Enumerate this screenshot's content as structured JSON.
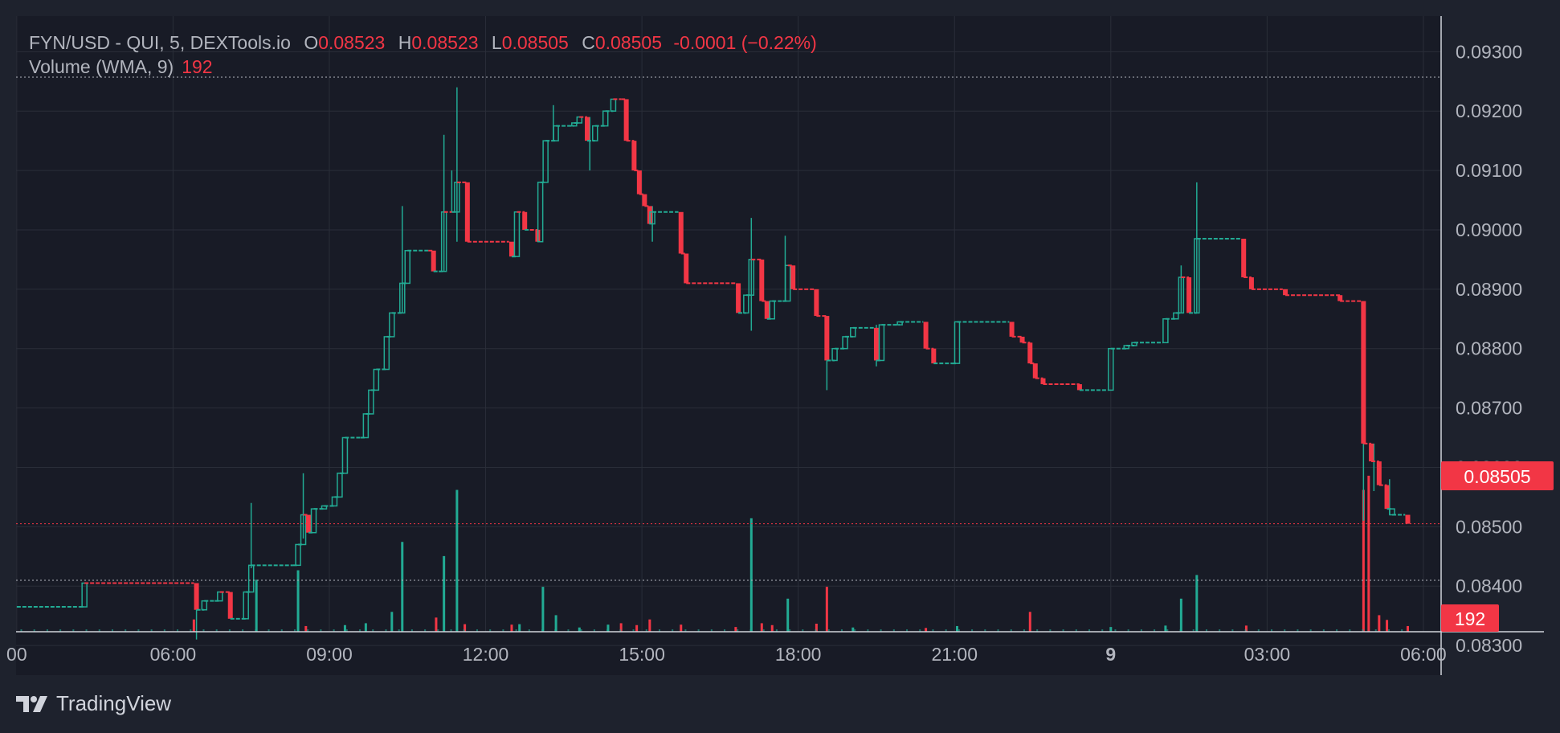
{
  "colors": {
    "background": "#1e222d",
    "plot_background": "#181b26",
    "grid": "#2a2e39",
    "up": "#22ab94",
    "down": "#f23645",
    "axis_text": "#b2b5be",
    "price_label_bg": "#f23645"
  },
  "legend": {
    "symbol": "FYN/USD - QUI, 5, DEXTools.io",
    "o_label": "O",
    "o_value": "0.08523",
    "h_label": "H",
    "h_value": "0.08523",
    "l_label": "L",
    "l_value": "0.08505",
    "c_label": "C",
    "c_value": "0.08505",
    "change": "-0.0001 (−0.22%)",
    "volume_label": "Volume (WMA, 9)",
    "volume_value": "192"
  },
  "current_price_label": "0.08505",
  "current_volume_label": "192",
  "brand": {
    "name": "TradingView",
    "icon": "tradingview-logo-icon"
  },
  "chart_data": {
    "type": "candlestick",
    "x_ticks": [
      "00",
      "06:00",
      "09:00",
      "12:00",
      "15:00",
      "18:00",
      "21:00",
      "9",
      "03:00",
      "06:00"
    ],
    "x_tick_hours": [
      3,
      6,
      9,
      12,
      15,
      18,
      21,
      24,
      27,
      30
    ],
    "x_range_hours": [
      2.987,
      30.34
    ],
    "y_ticks": [
      "0.09300",
      "0.09200",
      "0.09100",
      "0.09000",
      "0.08900",
      "0.08800",
      "0.08700",
      "0.08600",
      "0.08500",
      "0.08400",
      "0.08300"
    ],
    "y_range": [
      0.0825,
      0.0936
    ],
    "last_price": 0.08505,
    "volume_ylim": [
      0,
      3400
    ],
    "price_path": [
      [
        3.0,
        0.08365,
        "up"
      ],
      [
        4.2,
        0.08365,
        "up"
      ],
      [
        4.3,
        0.08405,
        "up"
      ],
      [
        6.4,
        0.08405,
        "down"
      ],
      [
        6.45,
        0.0836,
        "down"
      ],
      [
        6.6,
        0.08375,
        "up"
      ],
      [
        6.8,
        0.08375,
        "up"
      ],
      [
        6.9,
        0.0839,
        "up"
      ],
      [
        7.1,
        0.08345,
        "down"
      ],
      [
        7.4,
        0.0839,
        "up"
      ],
      [
        7.5,
        0.08435,
        "up"
      ],
      [
        8.3,
        0.08435,
        "up"
      ],
      [
        8.4,
        0.0847,
        "up"
      ],
      [
        8.5,
        0.0852,
        "up"
      ],
      [
        8.6,
        0.0849,
        "down"
      ],
      [
        8.7,
        0.0853,
        "up"
      ],
      [
        8.9,
        0.08535,
        "up"
      ],
      [
        9.1,
        0.0855,
        "up"
      ],
      [
        9.2,
        0.0859,
        "up"
      ],
      [
        9.3,
        0.0865,
        "up"
      ],
      [
        9.6,
        0.0865,
        "up"
      ],
      [
        9.7,
        0.0869,
        "up"
      ],
      [
        9.8,
        0.0873,
        "up"
      ],
      [
        9.9,
        0.08765,
        "up"
      ],
      [
        10.1,
        0.0882,
        "up"
      ],
      [
        10.2,
        0.0886,
        "up"
      ],
      [
        10.4,
        0.0891,
        "up"
      ],
      [
        10.5,
        0.08965,
        "up"
      ],
      [
        10.9,
        0.08965,
        "up"
      ],
      [
        11.0,
        0.0893,
        "down"
      ],
      [
        11.1,
        0.0893,
        "up"
      ],
      [
        11.2,
        0.0903,
        "up"
      ],
      [
        11.35,
        0.0903,
        "down"
      ],
      [
        11.45,
        0.0908,
        "up"
      ],
      [
        11.55,
        0.0908,
        "down"
      ],
      [
        11.65,
        0.0898,
        "down"
      ],
      [
        12.45,
        0.0898,
        "down"
      ],
      [
        12.5,
        0.08955,
        "down"
      ],
      [
        12.6,
        0.0903,
        "up"
      ],
      [
        12.75,
        0.09,
        "down"
      ],
      [
        12.85,
        0.09,
        "up"
      ],
      [
        13.0,
        0.0898,
        "down"
      ],
      [
        13.05,
        0.0908,
        "up"
      ],
      [
        13.15,
        0.0915,
        "up"
      ],
      [
        13.35,
        0.09175,
        "up"
      ],
      [
        13.7,
        0.0918,
        "up"
      ],
      [
        13.8,
        0.0919,
        "up"
      ],
      [
        13.95,
        0.0915,
        "down"
      ],
      [
        14.1,
        0.09175,
        "up"
      ],
      [
        14.3,
        0.092,
        "up"
      ],
      [
        14.45,
        0.0922,
        "up"
      ],
      [
        14.6,
        0.0922,
        "down"
      ],
      [
        14.7,
        0.0915,
        "down"
      ],
      [
        14.85,
        0.091,
        "down"
      ],
      [
        14.95,
        0.0906,
        "down"
      ],
      [
        15.05,
        0.0904,
        "down"
      ],
      [
        15.15,
        0.0901,
        "down"
      ],
      [
        15.2,
        0.0903,
        "up"
      ],
      [
        15.7,
        0.0903,
        "up"
      ],
      [
        15.75,
        0.0896,
        "down"
      ],
      [
        15.85,
        0.0891,
        "down"
      ],
      [
        16.8,
        0.0891,
        "down"
      ],
      [
        16.85,
        0.0886,
        "down"
      ],
      [
        17.0,
        0.0889,
        "up"
      ],
      [
        17.1,
        0.0895,
        "up"
      ],
      [
        17.3,
        0.0888,
        "down"
      ],
      [
        17.4,
        0.0885,
        "down"
      ],
      [
        17.5,
        0.0888,
        "up"
      ],
      [
        17.7,
        0.0888,
        "up"
      ],
      [
        17.8,
        0.0894,
        "up"
      ],
      [
        17.9,
        0.089,
        "down"
      ],
      [
        18.3,
        0.089,
        "down"
      ],
      [
        18.35,
        0.08855,
        "down"
      ],
      [
        18.55,
        0.0878,
        "down"
      ],
      [
        18.7,
        0.088,
        "up"
      ],
      [
        18.9,
        0.0882,
        "up"
      ],
      [
        19.05,
        0.08835,
        "up"
      ],
      [
        19.45,
        0.08835,
        "up"
      ],
      [
        19.5,
        0.0878,
        "down"
      ],
      [
        19.6,
        0.0884,
        "up"
      ],
      [
        19.95,
        0.08845,
        "up"
      ],
      [
        20.4,
        0.08845,
        "up"
      ],
      [
        20.45,
        0.088,
        "down"
      ],
      [
        20.6,
        0.08775,
        "down"
      ],
      [
        20.95,
        0.08775,
        "up"
      ],
      [
        21.05,
        0.08845,
        "up"
      ],
      [
        22.05,
        0.08845,
        "up"
      ],
      [
        22.1,
        0.0882,
        "down"
      ],
      [
        22.3,
        0.0881,
        "down"
      ],
      [
        22.45,
        0.08775,
        "down"
      ],
      [
        22.55,
        0.0875,
        "down"
      ],
      [
        22.7,
        0.0874,
        "down"
      ],
      [
        23.4,
        0.0873,
        "down"
      ],
      [
        23.95,
        0.0873,
        "up"
      ],
      [
        24.0,
        0.088,
        "up"
      ],
      [
        24.3,
        0.08805,
        "up"
      ],
      [
        24.45,
        0.0881,
        "up"
      ],
      [
        25.0,
        0.0881,
        "up"
      ],
      [
        25.05,
        0.0885,
        "up"
      ],
      [
        25.25,
        0.0886,
        "up"
      ],
      [
        25.35,
        0.0892,
        "up"
      ],
      [
        25.5,
        0.0886,
        "down"
      ],
      [
        25.65,
        0.08985,
        "up"
      ],
      [
        26.5,
        0.08985,
        "up"
      ],
      [
        26.55,
        0.0892,
        "down"
      ],
      [
        26.7,
        0.089,
        "down"
      ],
      [
        27.3,
        0.089,
        "down"
      ],
      [
        27.35,
        0.0889,
        "down"
      ],
      [
        28.4,
        0.0888,
        "down"
      ],
      [
        28.8,
        0.0888,
        "down"
      ],
      [
        28.85,
        0.0864,
        "down"
      ],
      [
        29.0,
        0.0861,
        "down"
      ],
      [
        29.15,
        0.0857,
        "down"
      ],
      [
        29.3,
        0.0853,
        "down"
      ],
      [
        29.4,
        0.0852,
        "up"
      ],
      [
        29.65,
        0.0852,
        "up"
      ],
      [
        29.7,
        0.08505,
        "down"
      ]
    ],
    "wicks": [
      [
        6.45,
        0.0836,
        0.0831
      ],
      [
        7.5,
        0.0854,
        0.0843
      ],
      [
        8.5,
        0.0859,
        0.0848
      ],
      [
        10.4,
        0.0904,
        0.0886
      ],
      [
        11.2,
        0.0916,
        0.0893
      ],
      [
        11.45,
        0.0924,
        0.0898
      ],
      [
        11.35,
        0.091,
        0.0903
      ],
      [
        13.3,
        0.0921,
        0.0915
      ],
      [
        14.0,
        0.0919,
        0.091
      ],
      [
        15.2,
        0.0904,
        0.0898
      ],
      [
        17.1,
        0.0902,
        0.0883
      ],
      [
        17.75,
        0.0899,
        0.0888
      ],
      [
        18.55,
        0.088,
        0.0873
      ],
      [
        19.5,
        0.0884,
        0.0877
      ],
      [
        25.35,
        0.0894,
        0.0886
      ],
      [
        25.65,
        0.0908,
        0.0886
      ],
      [
        28.85,
        0.0885,
        0.0851
      ],
      [
        29.05,
        0.0864,
        0.0856
      ],
      [
        29.35,
        0.0858,
        0.0852
      ]
    ],
    "volume_bars": [
      [
        6.4,
        260,
        "down"
      ],
      [
        7.6,
        1100,
        "up"
      ],
      [
        8.4,
        1300,
        "up"
      ],
      [
        8.55,
        120,
        "down"
      ],
      [
        9.3,
        140,
        "up"
      ],
      [
        9.7,
        180,
        "up"
      ],
      [
        10.2,
        420,
        "up"
      ],
      [
        10.4,
        1900,
        "up"
      ],
      [
        11.05,
        300,
        "down"
      ],
      [
        11.2,
        1600,
        "up"
      ],
      [
        11.45,
        3000,
        "up"
      ],
      [
        11.6,
        160,
        "down"
      ],
      [
        12.5,
        150,
        "down"
      ],
      [
        12.65,
        160,
        "up"
      ],
      [
        13.1,
        950,
        "up"
      ],
      [
        13.35,
        350,
        "up"
      ],
      [
        13.8,
        90,
        "up"
      ],
      [
        14.35,
        150,
        "up"
      ],
      [
        14.6,
        180,
        "down"
      ],
      [
        14.9,
        140,
        "down"
      ],
      [
        15.15,
        260,
        "down"
      ],
      [
        15.75,
        150,
        "down"
      ],
      [
        16.8,
        100,
        "down"
      ],
      [
        17.1,
        2400,
        "up"
      ],
      [
        17.3,
        180,
        "down"
      ],
      [
        17.5,
        140,
        "down"
      ],
      [
        17.8,
        700,
        "up"
      ],
      [
        18.35,
        170,
        "down"
      ],
      [
        18.55,
        950,
        "down"
      ],
      [
        19.05,
        90,
        "up"
      ],
      [
        20.45,
        80,
        "down"
      ],
      [
        21.05,
        120,
        "up"
      ],
      [
        22.45,
        420,
        "down"
      ],
      [
        24.0,
        100,
        "up"
      ],
      [
        25.05,
        130,
        "up"
      ],
      [
        25.35,
        700,
        "up"
      ],
      [
        25.65,
        1200,
        "up"
      ],
      [
        26.6,
        130,
        "down"
      ],
      [
        28.85,
        3000,
        "down"
      ],
      [
        28.95,
        3300,
        "down"
      ],
      [
        29.15,
        350,
        "down"
      ],
      [
        29.3,
        250,
        "down"
      ],
      [
        29.7,
        120,
        "down"
      ]
    ]
  }
}
